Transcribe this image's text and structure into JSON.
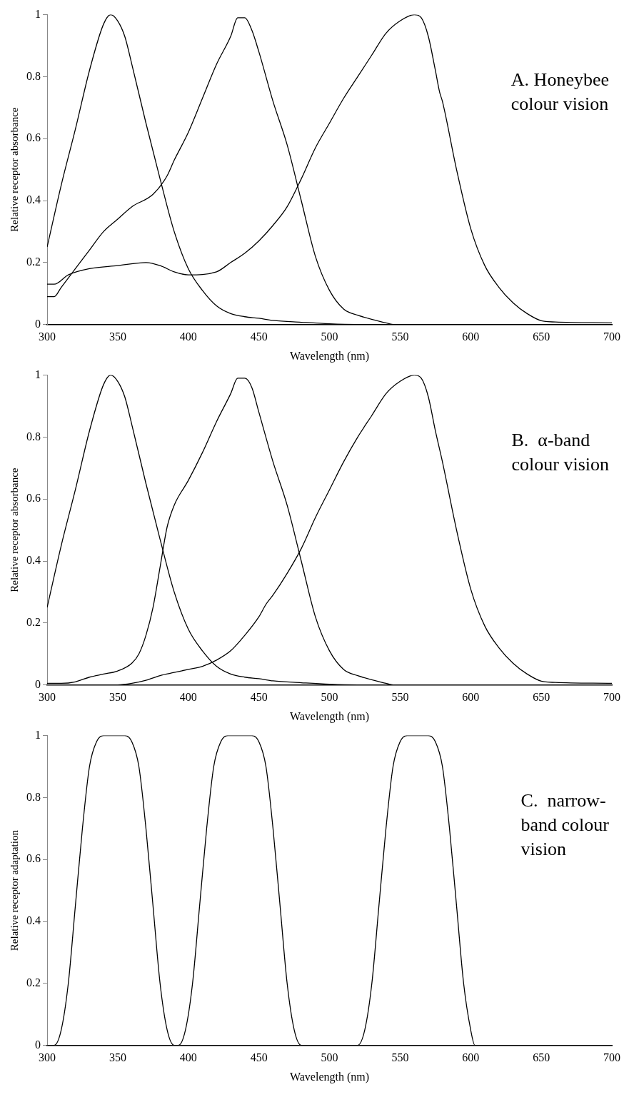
{
  "chart_data": [
    {
      "type": "line",
      "xlabel": "Wavelength (nm)",
      "ylabel": "Relative receptor absorbance",
      "annotations": [
        "A. Honeybee\ncolour vision"
      ],
      "xlim": [
        300,
        700
      ],
      "xticks": [
        300,
        350,
        400,
        450,
        500,
        550,
        600,
        650,
        700
      ],
      "ylim": [
        0,
        1
      ],
      "yticks": [
        0,
        0.2,
        0.4,
        0.6,
        0.8,
        1
      ],
      "grid": false,
      "legend": false,
      "series": [
        {
          "color": "#000000",
          "x": [
            300,
            310,
            320,
            330,
            340,
            345,
            350,
            355,
            360,
            370,
            380,
            390,
            400,
            410,
            420,
            430,
            440,
            450,
            460,
            480,
            500,
            520,
            700
          ],
          "values": [
            0.25,
            0.45,
            0.63,
            0.82,
            0.97,
            1.0,
            0.98,
            0.93,
            0.84,
            0.65,
            0.47,
            0.3,
            0.18,
            0.11,
            0.06,
            0.035,
            0.025,
            0.02,
            0.013,
            0.007,
            0.002,
            0,
            0
          ]
        },
        {
          "color": "#000000",
          "x": [
            300,
            305,
            310,
            320,
            330,
            340,
            350,
            360,
            375,
            385,
            390,
            400,
            410,
            420,
            430,
            435,
            440,
            445,
            450,
            460,
            470,
            480,
            490,
            500,
            510,
            520,
            540,
            545,
            700
          ],
          "values": [
            0.09,
            0.09,
            0.12,
            0.18,
            0.24,
            0.3,
            0.34,
            0.38,
            0.42,
            0.48,
            0.53,
            0.62,
            0.73,
            0.84,
            0.93,
            0.99,
            0.99,
            0.95,
            0.88,
            0.72,
            0.58,
            0.4,
            0.22,
            0.11,
            0.05,
            0.03,
            0.005,
            0,
            0
          ]
        },
        {
          "color": "#000000",
          "x": [
            300,
            305,
            315,
            330,
            350,
            370,
            380,
            390,
            400,
            420,
            430,
            440,
            450,
            460,
            470,
            480,
            490,
            500,
            510,
            520,
            530,
            540,
            550,
            560,
            565,
            570,
            575,
            578,
            580,
            590,
            600,
            610,
            620,
            630,
            640,
            650,
            660,
            700
          ],
          "values": [
            0.13,
            0.13,
            0.16,
            0.18,
            0.19,
            0.2,
            0.19,
            0.17,
            0.16,
            0.17,
            0.2,
            0.23,
            0.27,
            0.32,
            0.38,
            0.47,
            0.57,
            0.65,
            0.73,
            0.8,
            0.87,
            0.94,
            0.98,
            1.0,
            0.99,
            0.93,
            0.82,
            0.75,
            0.72,
            0.5,
            0.31,
            0.19,
            0.12,
            0.07,
            0.035,
            0.012,
            0.008,
            0.005
          ]
        }
      ]
    },
    {
      "type": "line",
      "xlabel": "Wavelength (nm)",
      "ylabel": "Relative receptor absorbance",
      "annotations": [
        "B.  α-band\ncolour vision"
      ],
      "xlim": [
        300,
        700
      ],
      "xticks": [
        300,
        350,
        400,
        450,
        500,
        550,
        600,
        650,
        700
      ],
      "ylim": [
        0,
        1
      ],
      "yticks": [
        0,
        0.2,
        0.4,
        0.6,
        0.8,
        1
      ],
      "grid": false,
      "legend": false,
      "series": [
        {
          "color": "#000000",
          "x": [
            300,
            310,
            320,
            330,
            340,
            345,
            350,
            355,
            360,
            370,
            380,
            390,
            400,
            410,
            420,
            430,
            440,
            450,
            460,
            480,
            500,
            520,
            700
          ],
          "values": [
            0.25,
            0.45,
            0.63,
            0.82,
            0.97,
            1.0,
            0.98,
            0.93,
            0.84,
            0.65,
            0.47,
            0.3,
            0.18,
            0.11,
            0.06,
            0.035,
            0.025,
            0.02,
            0.013,
            0.007,
            0.002,
            0,
            0
          ]
        },
        {
          "color": "#000000",
          "x": [
            300,
            310,
            320,
            330,
            340,
            350,
            360,
            365,
            370,
            375,
            380,
            385,
            390,
            400,
            410,
            420,
            430,
            435,
            440,
            445,
            450,
            460,
            470,
            480,
            490,
            500,
            510,
            520,
            540,
            545,
            700
          ],
          "values": [
            0.005,
            0.005,
            0.01,
            0.025,
            0.035,
            0.045,
            0.07,
            0.1,
            0.16,
            0.25,
            0.38,
            0.51,
            0.58,
            0.66,
            0.75,
            0.85,
            0.94,
            0.99,
            0.99,
            0.96,
            0.88,
            0.72,
            0.58,
            0.4,
            0.22,
            0.11,
            0.05,
            0.03,
            0.005,
            0,
            0
          ]
        },
        {
          "color": "#000000",
          "x": [
            300,
            350,
            360,
            370,
            380,
            390,
            400,
            410,
            420,
            430,
            440,
            450,
            455,
            460,
            470,
            480,
            490,
            500,
            510,
            520,
            530,
            540,
            550,
            560,
            565,
            570,
            575,
            580,
            590,
            600,
            610,
            620,
            630,
            640,
            650,
            660,
            700
          ],
          "values": [
            0,
            0,
            0.005,
            0.015,
            0.03,
            0.04,
            0.05,
            0.06,
            0.08,
            0.11,
            0.16,
            0.22,
            0.26,
            0.29,
            0.36,
            0.44,
            0.54,
            0.63,
            0.72,
            0.8,
            0.87,
            0.94,
            0.98,
            1.0,
            0.99,
            0.93,
            0.82,
            0.72,
            0.5,
            0.31,
            0.19,
            0.12,
            0.07,
            0.035,
            0.012,
            0.008,
            0.005
          ]
        }
      ]
    },
    {
      "type": "line",
      "xlabel": "Wavelength (nm)",
      "ylabel": "Relative receptor adaptation",
      "annotations": [
        "C.  narrow-\nband colour\nvision"
      ],
      "xlim": [
        300,
        700
      ],
      "xticks": [
        300,
        350,
        400,
        450,
        500,
        550,
        600,
        650,
        700
      ],
      "ylim": [
        0,
        1
      ],
      "yticks": [
        0,
        0.2,
        0.4,
        0.6,
        0.8,
        1
      ],
      "grid": false,
      "legend": false,
      "series": [
        {
          "color": "#000000",
          "x": [
            300,
            305,
            310,
            315,
            320,
            325,
            330,
            335,
            340,
            355,
            360,
            365,
            370,
            375,
            380,
            385,
            390,
            395,
            700
          ],
          "values": [
            0,
            0,
            0.05,
            0.2,
            0.45,
            0.7,
            0.9,
            0.98,
            1,
            1,
            0.98,
            0.9,
            0.7,
            0.45,
            0.2,
            0.05,
            0,
            0,
            0
          ]
        },
        {
          "color": "#000000",
          "x": [
            300,
            393,
            398,
            403,
            408,
            413,
            418,
            423,
            428,
            445,
            450,
            455,
            460,
            465,
            470,
            475,
            480,
            700
          ],
          "values": [
            0,
            0,
            0.05,
            0.2,
            0.45,
            0.7,
            0.9,
            0.98,
            1,
            1,
            0.98,
            0.9,
            0.7,
            0.45,
            0.2,
            0.05,
            0,
            0
          ]
        },
        {
          "color": "#000000",
          "x": [
            300,
            520,
            525,
            530,
            535,
            540,
            545,
            550,
            555,
            570,
            575,
            580,
            585,
            590,
            595,
            600,
            603,
            700
          ],
          "values": [
            0,
            0,
            0.05,
            0.2,
            0.45,
            0.7,
            0.9,
            0.98,
            1,
            1,
            0.98,
            0.9,
            0.7,
            0.45,
            0.2,
            0.05,
            0,
            0
          ]
        }
      ]
    }
  ]
}
